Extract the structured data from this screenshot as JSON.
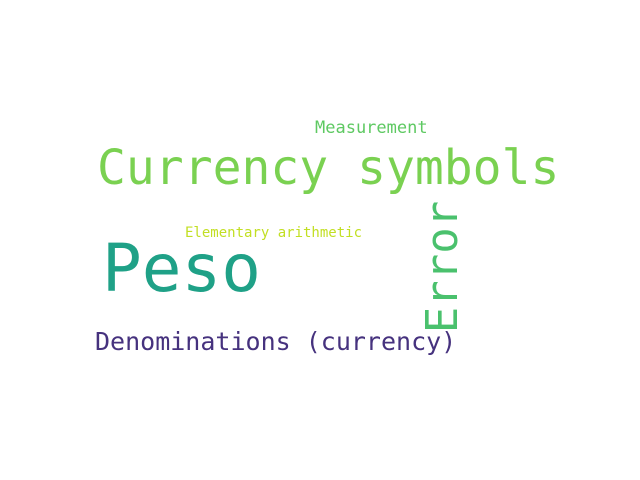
{
  "wordcloud": {
    "words": [
      {
        "text": "Measurement",
        "color": "#5ec962",
        "orientation": "horizontal"
      },
      {
        "text": "Currency symbols",
        "color": "#7ad151",
        "orientation": "horizontal"
      },
      {
        "text": "Elementary arithmetic",
        "color": "#c2df23",
        "orientation": "horizontal"
      },
      {
        "text": "Peso",
        "color": "#1fa187",
        "orientation": "horizontal"
      },
      {
        "text": "Error",
        "color": "#4ac16d",
        "orientation": "vertical"
      },
      {
        "text": "Denominations (currency)",
        "color": "#46327e",
        "orientation": "horizontal"
      }
    ]
  }
}
